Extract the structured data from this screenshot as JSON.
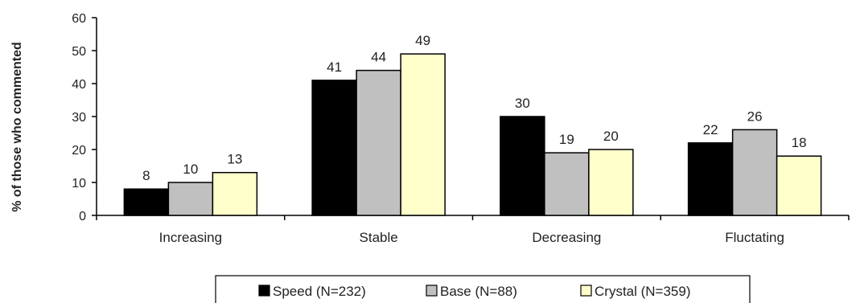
{
  "chart_data": {
    "type": "bar",
    "title": "",
    "xlabel": "",
    "ylabel": "% of those who commented",
    "ylim": [
      0,
      60
    ],
    "yticks": [
      0,
      10,
      20,
      30,
      40,
      50,
      60
    ],
    "categories": [
      "Increasing",
      "Stable",
      "Decreasing",
      "Fluctating"
    ],
    "series": [
      {
        "name": "Speed (N=232)",
        "color": "#000000",
        "values": [
          8,
          41,
          30,
          22
        ]
      },
      {
        "name": "Base (N=88)",
        "color": "#c0c0c0",
        "values": [
          10,
          44,
          19,
          26
        ]
      },
      {
        "name": "Crystal (N=359)",
        "color": "#ffffcc",
        "values": [
          13,
          49,
          20,
          18
        ]
      }
    ],
    "legend_position": "bottom",
    "grid": false,
    "data_labels": true
  }
}
